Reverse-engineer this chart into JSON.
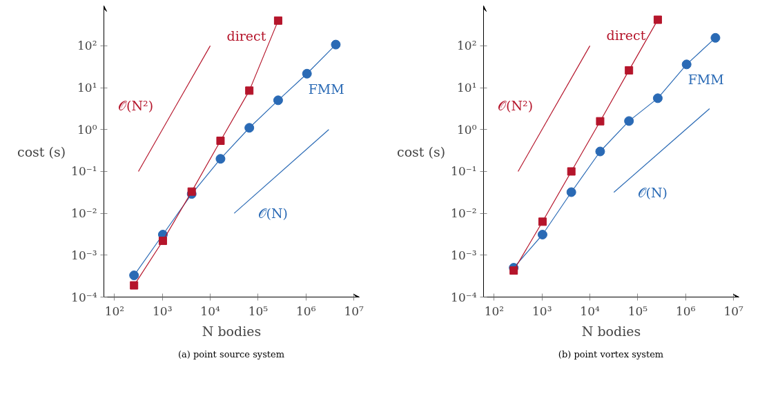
{
  "chart_data": [
    {
      "type": "line",
      "xlabel": "N bodies",
      "ylabel": "cost (s)",
      "log": "xy",
      "grid": false,
      "legend": false,
      "xlim": [
        60,
        13000000
      ],
      "ylim": [
        0.0001,
        900
      ],
      "xticks": [
        {
          "value": 100,
          "label": "10²"
        },
        {
          "value": 1000,
          "label": "10³"
        },
        {
          "value": 10000,
          "label": "10⁴"
        },
        {
          "value": 100000,
          "label": "10⁵"
        },
        {
          "value": 1000000,
          "label": "10⁶"
        },
        {
          "value": 10000000,
          "label": "10⁷"
        }
      ],
      "yticks": [
        {
          "value": 0.0001,
          "label": "10⁻⁴"
        },
        {
          "value": 0.001,
          "label": "10⁻³"
        },
        {
          "value": 0.01,
          "label": "10⁻²"
        },
        {
          "value": 0.1,
          "label": "10⁻¹"
        },
        {
          "value": 1,
          "label": "10⁰"
        },
        {
          "value": 10,
          "label": "10¹"
        },
        {
          "value": 100,
          "label": "10²"
        }
      ],
      "series": [
        {
          "name": "direct",
          "color": "#b5152b",
          "marker": "square",
          "x": [
            256,
            1024,
            4096,
            16384,
            65536,
            262144
          ],
          "values": [
            0.00019,
            0.0022,
            0.033,
            0.54,
            8.5,
            400
          ]
        },
        {
          "name": "FMM",
          "color": "#2a6ab5",
          "marker": "circle",
          "x": [
            256,
            1024,
            4096,
            16384,
            65536,
            262144,
            1048576,
            4194304
          ],
          "values": [
            0.00033,
            0.0031,
            0.029,
            0.2,
            1.1,
            5.0,
            21.6,
            107
          ]
        },
        {
          "name": "𝒪(N²)",
          "color": "#b5152b",
          "marker": "none",
          "x": [
            316,
            10000
          ],
          "values": [
            0.1,
            100
          ]
        },
        {
          "name": "𝒪(N)",
          "color": "#2a6ab5",
          "marker": "none",
          "x": [
            31623,
            3000000
          ],
          "values": [
            0.01,
            1
          ]
        }
      ],
      "annotations": [
        "(a) point source system"
      ]
    },
    {
      "type": "line",
      "xlabel": "N bodies",
      "ylabel": "cost (s)",
      "log": "xy",
      "grid": false,
      "legend": false,
      "xlim": [
        60,
        13000000
      ],
      "ylim": [
        0.0001,
        900
      ],
      "xticks": [
        {
          "value": 100,
          "label": "10²"
        },
        {
          "value": 1000,
          "label": "10³"
        },
        {
          "value": 10000,
          "label": "10⁴"
        },
        {
          "value": 100000,
          "label": "10⁵"
        },
        {
          "value": 1000000,
          "label": "10⁶"
        },
        {
          "value": 10000000,
          "label": "10⁷"
        }
      ],
      "yticks": [
        {
          "value": 0.0001,
          "label": "10⁻⁴"
        },
        {
          "value": 0.001,
          "label": "10⁻³"
        },
        {
          "value": 0.01,
          "label": "10⁻²"
        },
        {
          "value": 0.1,
          "label": "10⁻¹"
        },
        {
          "value": 1,
          "label": "10⁰"
        },
        {
          "value": 10,
          "label": "10¹"
        },
        {
          "value": 100,
          "label": "10²"
        }
      ],
      "series": [
        {
          "name": "direct",
          "color": "#b5152b",
          "marker": "square",
          "x": [
            256,
            1024,
            4096,
            16384,
            65536,
            262144
          ],
          "values": [
            0.00043,
            0.0063,
            0.1,
            1.58,
            26,
            420
          ]
        },
        {
          "name": "FMM",
          "color": "#2a6ab5",
          "marker": "circle",
          "x": [
            256,
            1024,
            4096,
            16384,
            65536,
            262144,
            1048576,
            4194304
          ],
          "values": [
            0.0005,
            0.0031,
            0.032,
            0.3,
            1.6,
            5.6,
            36,
            155
          ]
        },
        {
          "name": "𝒪(N²)",
          "color": "#b5152b",
          "marker": "none",
          "x": [
            316,
            10000
          ],
          "values": [
            0.1,
            100
          ]
        },
        {
          "name": "𝒪(N)",
          "color": "#2a6ab5",
          "marker": "none",
          "x": [
            31623,
            3162278
          ],
          "values": [
            0.0316,
            3.16
          ]
        }
      ],
      "annotations": [
        "(b) point vortex system"
      ]
    }
  ]
}
